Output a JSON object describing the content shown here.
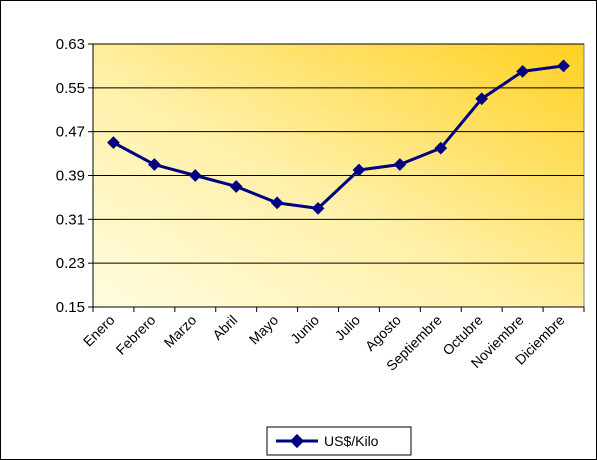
{
  "chart_data": {
    "type": "line",
    "title": "",
    "xlabel": "",
    "ylabel": "",
    "categories": [
      "Enero",
      "Febrero",
      "Marzo",
      "Abril",
      "Mayo",
      "Junio",
      "Julio",
      "Agosto",
      "Septiembre",
      "Octubre",
      "Noviembre",
      "Diciembre"
    ],
    "series": [
      {
        "name": "US$/Kilo",
        "values": [
          0.45,
          0.41,
          0.39,
          0.37,
          0.34,
          0.33,
          0.4,
          0.41,
          0.44,
          0.53,
          0.58,
          0.59
        ],
        "color": "#000080"
      }
    ],
    "ylim": [
      0.15,
      0.63
    ],
    "yticks": [
      "0.63",
      "0.55",
      "0.47",
      "0.39",
      "0.31",
      "0.23",
      "0.15"
    ],
    "ytick_values": [
      0.63,
      0.55,
      0.47,
      0.39,
      0.31,
      0.23,
      0.15
    ],
    "grid": true,
    "legend_position": "bottom",
    "plot_background": [
      "#fffde0",
      "#ffd020"
    ]
  }
}
